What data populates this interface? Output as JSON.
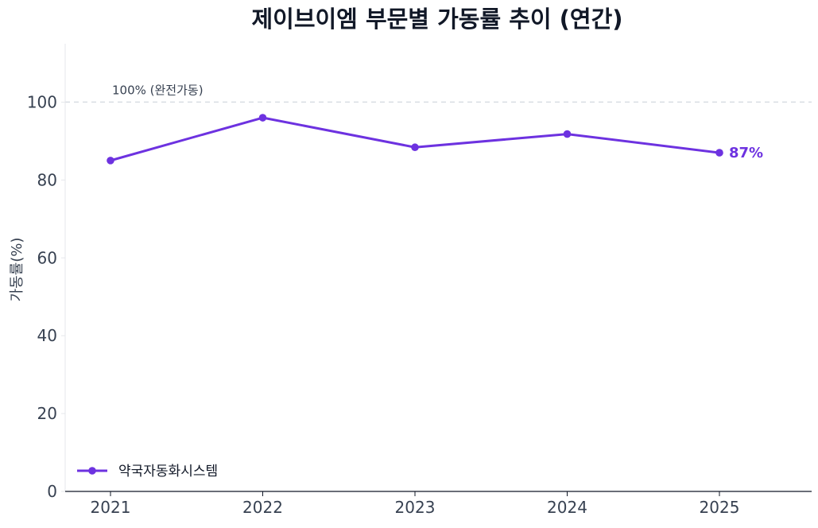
{
  "chart_data": {
    "type": "line",
    "title": "제이브이엠 부문별 가동률 추이 (연간)",
    "xlabel": "",
    "ylabel": "가동률(%)",
    "x": [
      "2021",
      "2022",
      "2023",
      "2024",
      "2025"
    ],
    "series": [
      {
        "name": "약국자동화시스템",
        "values": [
          85.0,
          96.0,
          88.4,
          91.8,
          87.0
        ],
        "color": "#6D32E0"
      }
    ],
    "ylim": [
      0,
      115
    ],
    "yticks": [
      0,
      20,
      40,
      60,
      80,
      100
    ],
    "reference_line": {
      "value": 100,
      "label": "100% (완전가동)",
      "color": "#D9DDE3",
      "style": "dashed"
    },
    "end_label": "87%",
    "grid": false,
    "legend_position": "bottom-left",
    "colors": {
      "title": "#111827",
      "axis_text": "#374151",
      "axis_line": "#111827",
      "left_spine": "#E5E7EB"
    }
  }
}
